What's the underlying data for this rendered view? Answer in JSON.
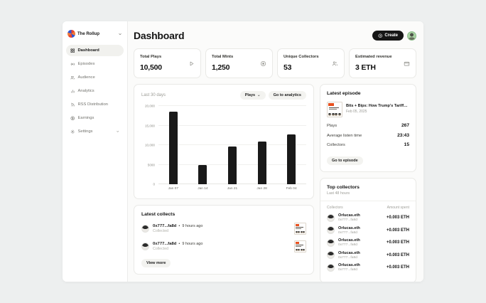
{
  "brand": {
    "name": "The Rollup"
  },
  "sidebar": {
    "items": [
      {
        "label": "Dashboard",
        "active": true
      },
      {
        "label": "Episodes",
        "active": false
      },
      {
        "label": "Audience",
        "active": false
      },
      {
        "label": "Analytics",
        "active": false
      },
      {
        "label": "RSS Distribution",
        "active": false
      },
      {
        "label": "Earnings",
        "active": false
      },
      {
        "label": "Settings",
        "active": false
      }
    ]
  },
  "header": {
    "title": "Dashboard",
    "create_label": "Create"
  },
  "stats": [
    {
      "label": "Total Plays",
      "value": "10,500",
      "icon": "play-icon"
    },
    {
      "label": "Total Mints",
      "value": "1,250",
      "icon": "mint-badge-icon"
    },
    {
      "label": "Unique Collectors",
      "value": "53",
      "icon": "users-icon"
    },
    {
      "label": "Estimated revenue",
      "value": "3 ETH",
      "icon": "wallet-icon"
    }
  ],
  "chart_card": {
    "period": "Last 30 days",
    "metric_select": "Plays",
    "analytics_button": "Go to analytics"
  },
  "chart_data": {
    "type": "bar",
    "categories": [
      "Jan 07",
      "Jan 14",
      "Jan 21",
      "Jan 28",
      "Feb 04"
    ],
    "values": [
      18600,
      4900,
      9700,
      11000,
      12700
    ],
    "title": "",
    "xlabel": "",
    "ylabel": "",
    "ylim": [
      0,
      20000
    ],
    "ytick_labels": [
      "0",
      "5000",
      "10,000",
      "15,000",
      "20,000"
    ],
    "bar_color": "#191919",
    "grid": true,
    "legend": false
  },
  "latest_collects": {
    "title": "Latest collects",
    "bullet": "•",
    "items": [
      {
        "address": "0x777...fa8d",
        "time": "9 hours ago",
        "action": "Collected"
      },
      {
        "address": "0x777...fa8d",
        "time": "9 hours ago",
        "action": "Collected"
      }
    ],
    "view_more_label": "View more"
  },
  "latest_episode": {
    "title": "Latest episode",
    "episode_title": "Bits + Bips: How Trump's Tariffs Are...",
    "date": "Feb 05, 2025",
    "stats": [
      {
        "label": "Plays",
        "value": "267"
      },
      {
        "label": "Average listen time",
        "value": "23:43"
      },
      {
        "label": "Collectors",
        "value": "15"
      }
    ],
    "button_label": "Go to episode"
  },
  "top_collectors": {
    "title": "Top collectors",
    "subtitle": "Last 48 hours",
    "col_collectors": "Collectors",
    "col_amount": "Amount spent",
    "rows": [
      {
        "name": "Orlucas.eth",
        "address": "0x777...fa8d",
        "amount": "+0.003 ETH"
      },
      {
        "name": "Orlucas.eth",
        "address": "0x777...fa8d",
        "amount": "+0.003 ETH"
      },
      {
        "name": "Orlucas.eth",
        "address": "0x777...fa8d",
        "amount": "+0.003 ETH"
      },
      {
        "name": "Orlucas.eth",
        "address": "0x777...fa8d",
        "amount": "+0.003 ETH"
      },
      {
        "name": "Orlucas.eth",
        "address": "0x777...fa8d",
        "amount": "+0.003 ETH"
      }
    ]
  },
  "colors": {
    "bar": "#191919",
    "accent_dark": "#161616",
    "cover_orange": "#e8501e",
    "avatar_green": "#a9d3a4"
  }
}
